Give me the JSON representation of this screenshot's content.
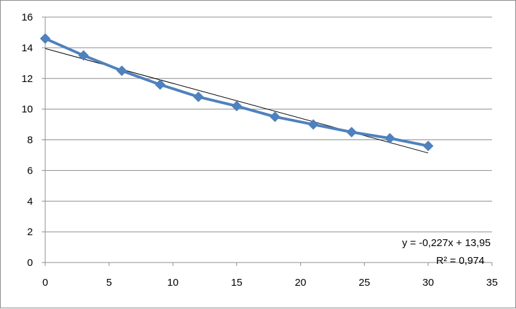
{
  "chart_data": {
    "type": "scatter",
    "title": "",
    "xlabel": "",
    "ylabel": "",
    "xlim": [
      0,
      35
    ],
    "ylim": [
      0,
      16
    ],
    "x_ticks": [
      "0",
      "5",
      "10",
      "15",
      "20",
      "25",
      "30",
      "35"
    ],
    "y_ticks": [
      "0",
      "2",
      "4",
      "6",
      "8",
      "10",
      "12",
      "14",
      "16"
    ],
    "grid": "horizontal",
    "legend": "none",
    "series": [
      {
        "marker": "diamond",
        "line": true,
        "color": "#4F81BD",
        "x": [
          0,
          3,
          6,
          9,
          12,
          15,
          18,
          21,
          24,
          27,
          30
        ],
        "y": [
          14.6,
          13.5,
          12.5,
          11.6,
          10.8,
          10.2,
          9.5,
          9.0,
          8.5,
          8.1,
          7.6
        ]
      }
    ],
    "trendline": {
      "type": "linear",
      "color": "#000000",
      "slope": -0.227,
      "intercept": 13.95,
      "x_range": [
        0,
        30
      ],
      "equation": "y = -0,227x + 13,95",
      "r_squared": "R² = 0,974"
    }
  }
}
